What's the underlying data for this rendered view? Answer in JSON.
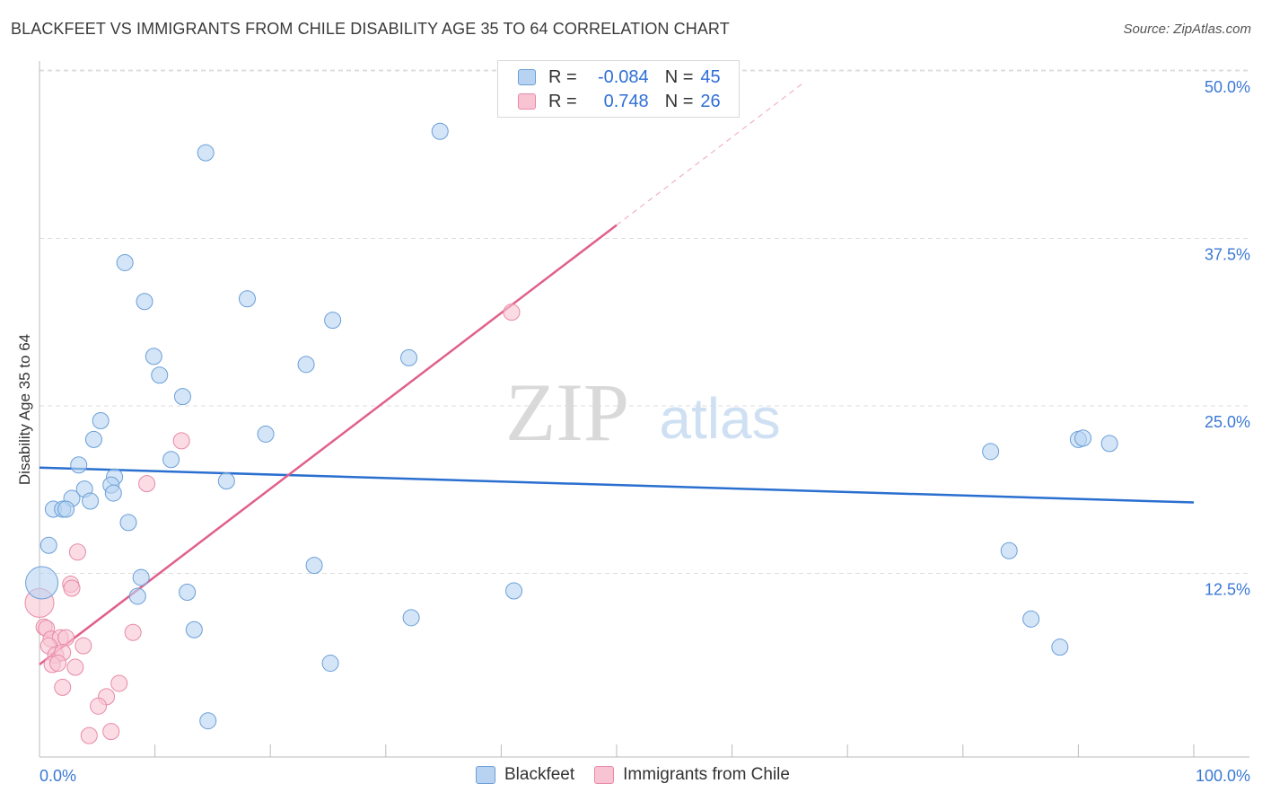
{
  "header": {
    "title": "BLACKFEET VS IMMIGRANTS FROM CHILE DISABILITY AGE 35 TO 64 CORRELATION CHART",
    "source": "Source: ZipAtlas.com"
  },
  "watermark": {
    "zip": "ZIP",
    "atlas": "atlas"
  },
  "legend_top": {
    "rows": [
      {
        "r_label": "R =",
        "r_value": "-0.084",
        "n_label": "N =",
        "n_value": "45"
      },
      {
        "r_label": "R =",
        "r_value": "0.748",
        "n_label": "N =",
        "n_value": "26"
      }
    ]
  },
  "legend_bottom": {
    "items": [
      {
        "label": "Blackfeet"
      },
      {
        "label": "Immigrants from Chile"
      }
    ]
  },
  "colors": {
    "blue_fill": "#b8d3f1",
    "blue_stroke": "#6a9fd8",
    "blue_line": "#2a6fd0",
    "pink_fill": "#f8c4d4",
    "pink_stroke": "#e889a7",
    "pink_line": "#e0608a",
    "tick_text": "#3a78d4",
    "grid": "#dddddd"
  },
  "chart_data": {
    "type": "scatter",
    "title": "BLACKFEET VS IMMIGRANTS FROM CHILE DISABILITY AGE 35 TO 64 CORRELATION CHART",
    "xlabel": "",
    "ylabel": "Disability Age 35 to 64",
    "xlim": [
      0,
      100
    ],
    "ylim": [
      0,
      50
    ],
    "x_tick_labels": [
      "0.0%",
      "100.0%"
    ],
    "y_ticks": [
      12.5,
      25.0,
      37.5,
      50.0
    ],
    "y_tick_labels": [
      "12.5%",
      "25.0%",
      "37.5%",
      "50.0%"
    ],
    "series": [
      {
        "name": "Blackfeet",
        "color": "blue",
        "R": -0.084,
        "N": 45,
        "trend": {
          "x": [
            0,
            100
          ],
          "y": [
            21.6,
            19.0
          ],
          "dashed_extension": false
        },
        "points": [
          {
            "x": 14.4,
            "y": 45.1
          },
          {
            "x": 34.7,
            "y": 46.7
          },
          {
            "x": 7.4,
            "y": 36.9
          },
          {
            "x": 9.1,
            "y": 34.0
          },
          {
            "x": 18.0,
            "y": 34.2
          },
          {
            "x": 25.4,
            "y": 32.6
          },
          {
            "x": 9.9,
            "y": 29.9
          },
          {
            "x": 23.1,
            "y": 29.3
          },
          {
            "x": 32.0,
            "y": 29.8
          },
          {
            "x": 10.4,
            "y": 28.5
          },
          {
            "x": 12.4,
            "y": 26.9
          },
          {
            "x": 5.3,
            "y": 25.1
          },
          {
            "x": 19.6,
            "y": 24.1
          },
          {
            "x": 4.7,
            "y": 23.7
          },
          {
            "x": 11.4,
            "y": 22.2
          },
          {
            "x": 3.4,
            "y": 21.8
          },
          {
            "x": 6.5,
            "y": 20.9
          },
          {
            "x": 16.2,
            "y": 20.6
          },
          {
            "x": 6.2,
            "y": 20.3
          },
          {
            "x": 3.9,
            "y": 20.0
          },
          {
            "x": 6.4,
            "y": 19.7
          },
          {
            "x": 2.8,
            "y": 19.3
          },
          {
            "x": 4.4,
            "y": 19.1
          },
          {
            "x": 1.2,
            "y": 18.5
          },
          {
            "x": 2.0,
            "y": 18.5
          },
          {
            "x": 2.3,
            "y": 18.5
          },
          {
            "x": 7.7,
            "y": 17.5
          },
          {
            "x": 0.8,
            "y": 15.8
          },
          {
            "x": 0.2,
            "y": 13.0
          },
          {
            "x": 8.8,
            "y": 13.4
          },
          {
            "x": 23.8,
            "y": 14.3
          },
          {
            "x": 8.5,
            "y": 12.0
          },
          {
            "x": 12.8,
            "y": 12.3
          },
          {
            "x": 41.1,
            "y": 12.4
          },
          {
            "x": 32.2,
            "y": 10.4
          },
          {
            "x": 13.4,
            "y": 9.5
          },
          {
            "x": 25.2,
            "y": 7.0
          },
          {
            "x": 14.6,
            "y": 2.7
          },
          {
            "x": 82.4,
            "y": 22.8
          },
          {
            "x": 90.0,
            "y": 23.7
          },
          {
            "x": 90.4,
            "y": 23.8
          },
          {
            "x": 92.7,
            "y": 23.4
          },
          {
            "x": 84.0,
            "y": 15.4
          },
          {
            "x": 85.9,
            "y": 10.3
          },
          {
            "x": 88.4,
            "y": 8.2
          }
        ]
      },
      {
        "name": "Immigrants from Chile",
        "color": "pink",
        "R": 0.748,
        "N": 26,
        "trend": {
          "x": [
            0,
            50
          ],
          "y": [
            6.9,
            39.7
          ],
          "dashed_to": {
            "x": 66.3,
            "y": 50.4
          }
        },
        "points": [
          {
            "x": 40.9,
            "y": 33.2
          },
          {
            "x": 12.3,
            "y": 23.6
          },
          {
            "x": 9.3,
            "y": 20.4
          },
          {
            "x": 3.3,
            "y": 15.3
          },
          {
            "x": 2.7,
            "y": 12.9
          },
          {
            "x": 2.8,
            "y": 12.6
          },
          {
            "x": 0.0,
            "y": 11.5
          },
          {
            "x": 0.4,
            "y": 9.7
          },
          {
            "x": 0.6,
            "y": 9.6
          },
          {
            "x": 8.1,
            "y": 9.3
          },
          {
            "x": 1.0,
            "y": 8.8
          },
          {
            "x": 1.8,
            "y": 8.9
          },
          {
            "x": 2.3,
            "y": 8.9
          },
          {
            "x": 0.8,
            "y": 8.3
          },
          {
            "x": 3.8,
            "y": 8.3
          },
          {
            "x": 1.4,
            "y": 7.6
          },
          {
            "x": 2.0,
            "y": 7.8
          },
          {
            "x": 1.1,
            "y": 6.9
          },
          {
            "x": 1.6,
            "y": 7.0
          },
          {
            "x": 3.1,
            "y": 6.7
          },
          {
            "x": 2.0,
            "y": 5.2
          },
          {
            "x": 6.9,
            "y": 5.5
          },
          {
            "x": 5.8,
            "y": 4.5
          },
          {
            "x": 5.1,
            "y": 3.8
          },
          {
            "x": 6.2,
            "y": 1.9
          },
          {
            "x": 4.3,
            "y": 1.6
          }
        ]
      }
    ]
  }
}
